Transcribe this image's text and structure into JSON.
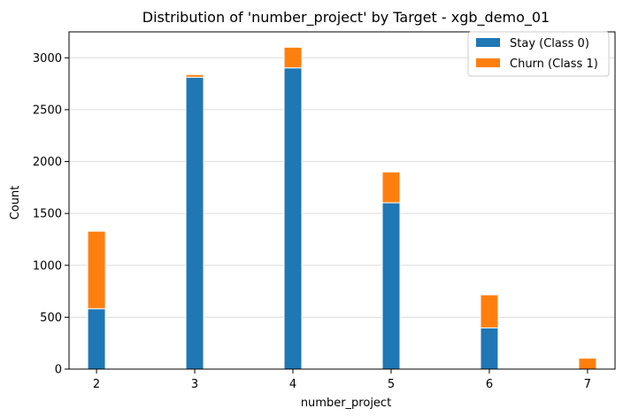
{
  "chart_data": {
    "type": "bar",
    "stacked": true,
    "title": "Distribution of 'number_project' by Target - xgb_demo_01",
    "xlabel": "number_project",
    "ylabel": "Count",
    "categories": [
      2,
      3,
      4,
      5,
      6,
      7
    ],
    "xlim": [
      1.72,
      7.28
    ],
    "ylim": [
      0,
      3250
    ],
    "yticks": [
      0,
      500,
      1000,
      1500,
      2000,
      2500,
      3000
    ],
    "xticks": [
      2,
      3,
      4,
      5,
      6,
      7
    ],
    "grid": "y",
    "legend_position": "top-right",
    "series": [
      {
        "name": "Stay (Class 0)",
        "color": "#1f77b4",
        "values": [
          582,
          2813,
          2903,
          1603,
          397,
          0
        ]
      },
      {
        "name": "Churn (Class 1)",
        "color": "#ff7f0e",
        "values": [
          747,
          25,
          199,
          297,
          319,
          105
        ]
      }
    ]
  }
}
